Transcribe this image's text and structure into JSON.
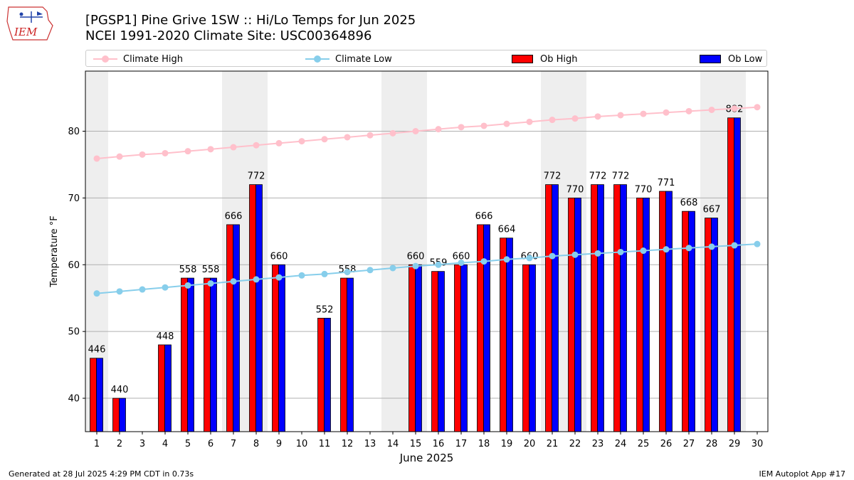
{
  "header": {
    "logo_text": "IEM",
    "title_line1": "[PGSP1] Pine Grive 1SW :: Hi/Lo Temps for Jun 2025",
    "title_line2": "NCEI 1991-2020 Climate Site: USC00364896"
  },
  "legend": {
    "climate_high": "Climate High",
    "climate_low": "Climate Low",
    "ob_high": "Ob High",
    "ob_low": "Ob Low"
  },
  "colors": {
    "climate_high": "#ffc0cb",
    "climate_low": "#87ceeb",
    "ob_high": "#ff0000",
    "ob_low": "#0000ff",
    "weekend_band": "#eeeeee",
    "grid": "#b0b0b0"
  },
  "chart_data": {
    "type": "bar",
    "xlabel": "June 2025",
    "ylabel": "Temperature °F",
    "ylim": [
      35,
      89
    ],
    "yticks": [
      40,
      50,
      60,
      70,
      80
    ],
    "grid": "horizontal",
    "legend_placement": "top",
    "days": [
      1,
      2,
      3,
      4,
      5,
      6,
      7,
      8,
      9,
      10,
      11,
      12,
      13,
      14,
      15,
      16,
      17,
      18,
      19,
      20,
      21,
      22,
      23,
      24,
      25,
      26,
      27,
      28,
      29,
      30
    ],
    "weekend_days": [
      1,
      7,
      8,
      14,
      15,
      21,
      22,
      28,
      29
    ],
    "series": [
      {
        "name": "Ob High",
        "kind": "bar",
        "values": [
          46,
          40,
          null,
          48,
          58,
          58,
          66,
          72,
          60,
          null,
          52,
          58,
          null,
          null,
          60,
          59,
          60,
          66,
          64,
          60,
          72,
          70,
          72,
          72,
          70,
          71,
          68,
          67,
          82,
          null
        ]
      },
      {
        "name": "Ob Low",
        "kind": "bar",
        "values": [
          46,
          40,
          null,
          48,
          58,
          58,
          66,
          72,
          60,
          null,
          52,
          58,
          null,
          null,
          60,
          59,
          60,
          66,
          64,
          60,
          72,
          70,
          72,
          72,
          70,
          71,
          68,
          67,
          82,
          null
        ]
      },
      {
        "name": "Climate High",
        "kind": "line",
        "values": [
          75.9,
          76.2,
          76.5,
          76.7,
          77.0,
          77.3,
          77.6,
          77.9,
          78.2,
          78.5,
          78.8,
          79.1,
          79.4,
          79.7,
          80.0,
          80.3,
          80.6,
          80.8,
          81.1,
          81.4,
          81.7,
          81.9,
          82.2,
          82.4,
          82.6,
          82.8,
          83.0,
          83.2,
          83.4,
          83.6
        ]
      },
      {
        "name": "Climate Low",
        "kind": "line",
        "values": [
          55.7,
          56.0,
          56.3,
          56.6,
          56.9,
          57.2,
          57.5,
          57.8,
          58.1,
          58.4,
          58.6,
          58.9,
          59.2,
          59.5,
          59.8,
          60.0,
          60.3,
          60.5,
          60.8,
          61.0,
          61.3,
          61.5,
          61.7,
          61.9,
          62.1,
          62.3,
          62.5,
          62.7,
          62.9,
          63.1
        ]
      }
    ],
    "bar_labels": [
      "446",
      "440",
      "",
      "448",
      "558",
      "558",
      "666",
      "772",
      "660",
      "",
      "552",
      "558",
      "",
      "",
      "660",
      "559",
      "660",
      "666",
      "664",
      "660",
      "772",
      "770",
      "772",
      "772",
      "770",
      "771",
      "668",
      "667",
      "882",
      ""
    ]
  },
  "footer": {
    "left": "Generated at 28 Jul 2025 4:29 PM CDT in 0.73s",
    "right": "IEM Autoplot App #17"
  }
}
